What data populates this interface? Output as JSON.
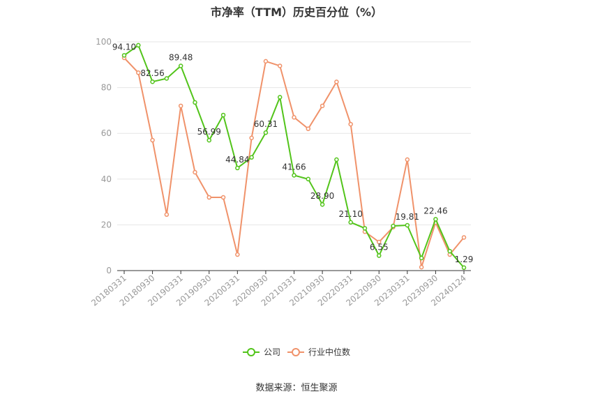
{
  "chart_data": {
    "type": "line",
    "title": "市净率（TTM）历史百分位（%）",
    "xlabel": "",
    "ylabel": "",
    "ylim": [
      0,
      100
    ],
    "yticks": [
      0,
      20,
      40,
      60,
      80,
      100
    ],
    "grid": true,
    "legend_position": "bottom",
    "x": [
      "20180331",
      "20180630",
      "20180930",
      "20181231",
      "20190331",
      "20190630",
      "20190930",
      "20191231",
      "20200331",
      "20200630",
      "20200930",
      "20201231",
      "20210331",
      "20210630",
      "20210930",
      "20211231",
      "20220331",
      "20220630",
      "20220930",
      "20221231",
      "20230331",
      "20230630",
      "20230930",
      "20231231",
      "20240124"
    ],
    "xtick_labels": [
      "20180331",
      "20180930",
      "20190331",
      "20190930",
      "20200331",
      "20200930",
      "20210331",
      "20210930",
      "20220331",
      "20220930",
      "20230331",
      "20230930",
      "20240124"
    ],
    "series": [
      {
        "name": "公司",
        "color": "#52c41a",
        "values": [
          94.1,
          98.5,
          82.56,
          84.0,
          89.48,
          73.5,
          56.99,
          68.0,
          44.84,
          49.5,
          60.31,
          75.8,
          41.66,
          40.0,
          28.9,
          48.5,
          21.1,
          18.5,
          6.55,
          19.5,
          19.81,
          5.5,
          22.46,
          8.5,
          1.29
        ],
        "labels": {
          "0": "94.10",
          "2": "82.56",
          "4": "89.48",
          "6": "56.99",
          "8": "44.84",
          "10": "60.31",
          "12": "41.66",
          "14": "28.90",
          "16": "21.10",
          "18": "6.55",
          "20": "19.81",
          "22": "22.46",
          "24": "1.29"
        }
      },
      {
        "name": "行业中位数",
        "color": "#f0926a",
        "values": [
          93.0,
          86.5,
          57.0,
          24.5,
          72.0,
          43.0,
          32.0,
          32.0,
          7.0,
          58.0,
          91.5,
          89.5,
          67.0,
          62.0,
          72.0,
          82.5,
          64.0,
          17.0,
          12.5,
          19.0,
          48.5,
          1.5,
          21.0,
          7.0,
          14.5
        ]
      }
    ]
  },
  "source": "数据来源：恒生聚源"
}
